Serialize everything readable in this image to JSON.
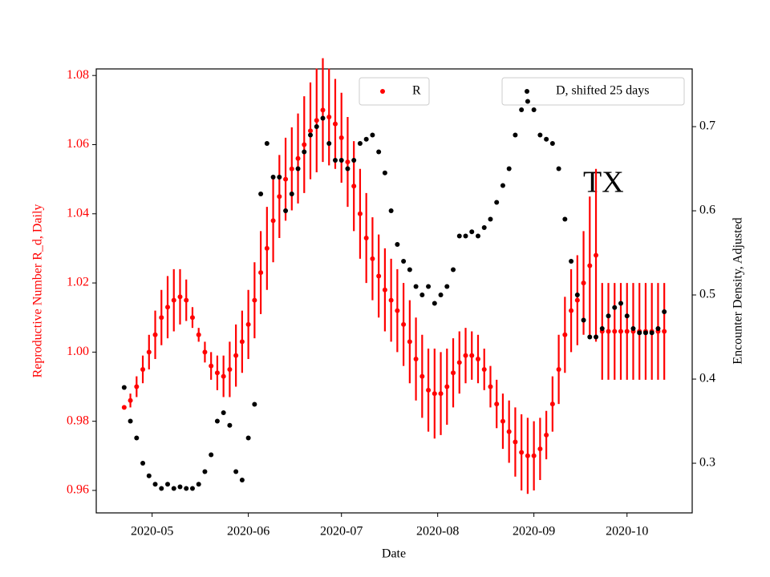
{
  "chart_data": {
    "type": "dual-scatter",
    "annotation": "TX",
    "x_label": "Date",
    "y_label": "Reproductive Number R_d, Daily",
    "y2_label": "Encounter Density, Adjusted",
    "xlim": [
      "2020-04-13",
      "2020-10-22"
    ],
    "xticks": [
      {
        "value": "2020-05-01",
        "label": "2020-05"
      },
      {
        "value": "2020-06-01",
        "label": "2020-06"
      },
      {
        "value": "2020-07-01",
        "label": "2020-07"
      },
      {
        "value": "2020-08-01",
        "label": "2020-08"
      },
      {
        "value": "2020-09-01",
        "label": "2020-09"
      },
      {
        "value": "2020-10-01",
        "label": "2020-10"
      }
    ],
    "ylim": [
      0.9535,
      1.0819
    ],
    "yticks": [
      0.96,
      0.98,
      {
        "value": 1,
        "label": "1.00"
      },
      1.02,
      1.04,
      1.06,
      1.08
    ],
    "y2lim": [
      0.241,
      0.7686
    ],
    "y2ticks": [
      0.3,
      0.4,
      0.5,
      0.6,
      0.7
    ],
    "x": [
      "2020-04-22",
      "2020-04-24",
      "2020-04-26",
      "2020-04-28",
      "2020-04-30",
      "2020-05-02",
      "2020-05-04",
      "2020-05-06",
      "2020-05-08",
      "2020-05-10",
      "2020-05-12",
      "2020-05-14",
      "2020-05-16",
      "2020-05-18",
      "2020-05-20",
      "2020-05-22",
      "2020-05-24",
      "2020-05-26",
      "2020-05-28",
      "2020-05-30",
      "2020-06-01",
      "2020-06-03",
      "2020-06-05",
      "2020-06-07",
      "2020-06-09",
      "2020-06-11",
      "2020-06-13",
      "2020-06-15",
      "2020-06-17",
      "2020-06-19",
      "2020-06-21",
      "2020-06-23",
      "2020-06-25",
      "2020-06-27",
      "2020-06-29",
      "2020-07-01",
      "2020-07-03",
      "2020-07-05",
      "2020-07-07",
      "2020-07-09",
      "2020-07-11",
      "2020-07-13",
      "2020-07-15",
      "2020-07-17",
      "2020-07-19",
      "2020-07-21",
      "2020-07-23",
      "2020-07-25",
      "2020-07-27",
      "2020-07-29",
      "2020-07-31",
      "2020-08-02",
      "2020-08-04",
      "2020-08-06",
      "2020-08-08",
      "2020-08-10",
      "2020-08-12",
      "2020-08-14",
      "2020-08-16",
      "2020-08-18",
      "2020-08-20",
      "2020-08-22",
      "2020-08-24",
      "2020-08-26",
      "2020-08-28",
      "2020-08-30",
      "2020-09-01",
      "2020-09-03",
      "2020-09-05",
      "2020-09-07",
      "2020-09-09",
      "2020-09-11",
      "2020-09-13",
      "2020-09-15",
      "2020-09-17",
      "2020-09-19",
      "2020-09-21",
      "2020-09-23",
      "2020-09-25",
      "2020-09-27",
      "2020-09-29",
      "2020-10-01",
      "2020-10-03",
      "2020-10-05",
      "2020-10-07",
      "2020-10-09",
      "2020-10-11",
      "2020-10-13"
    ],
    "series": [
      {
        "name": "R",
        "color": "#ff0000",
        "values": [
          0.984,
          0.986,
          0.99,
          0.995,
          1.0,
          1.005,
          1.01,
          1.013,
          1.015,
          1.016,
          1.015,
          1.01,
          1.005,
          1.0,
          0.996,
          0.994,
          0.993,
          0.995,
          0.999,
          1.003,
          1.008,
          1.015,
          1.023,
          1.03,
          1.038,
          1.045,
          1.05,
          1.053,
          1.056,
          1.06,
          1.064,
          1.067,
          1.07,
          1.068,
          1.066,
          1.062,
          1.055,
          1.048,
          1.04,
          1.033,
          1.027,
          1.022,
          1.018,
          1.015,
          1.012,
          1.008,
          1.003,
          0.998,
          0.993,
          0.989,
          0.988,
          0.988,
          0.99,
          0.994,
          0.997,
          0.999,
          0.999,
          0.998,
          0.995,
          0.99,
          0.985,
          0.98,
          0.977,
          0.974,
          0.971,
          0.97,
          0.97,
          0.972,
          0.976,
          0.985,
          0.995,
          1.005,
          1.012,
          1.015,
          1.02,
          1.025,
          1.028,
          1.006,
          1.006,
          1.006,
          1.006,
          1.006,
          1.006,
          1.006,
          1.006,
          1.006,
          1.006,
          1.006
        ],
        "errors": [
          0,
          0.002,
          0.003,
          0.004,
          0.005,
          0.007,
          0.008,
          0.009,
          0.009,
          0.008,
          0.006,
          0.003,
          0.002,
          0.003,
          0.004,
          0.005,
          0.006,
          0.008,
          0.009,
          0.009,
          0.01,
          0.011,
          0.012,
          0.012,
          0.012,
          0.012,
          0.012,
          0.012,
          0.013,
          0.014,
          0.014,
          0.015,
          0.015,
          0.014,
          0.013,
          0.013,
          0.013,
          0.013,
          0.013,
          0.013,
          0.012,
          0.012,
          0.012,
          0.012,
          0.012,
          0.012,
          0.012,
          0.012,
          0.012,
          0.012,
          0.013,
          0.012,
          0.011,
          0.01,
          0.009,
          0.008,
          0.007,
          0.007,
          0.006,
          0.006,
          0.007,
          0.008,
          0.009,
          0.01,
          0.011,
          0.011,
          0.01,
          0.009,
          0.007,
          0.008,
          0.01,
          0.011,
          0.012,
          0.013,
          0.015,
          0.02,
          0.025,
          0.014,
          0.014,
          0.014,
          0.014,
          0.014,
          0.014,
          0.014,
          0.014,
          0.014,
          0.014,
          0.014
        ]
      },
      {
        "name": "D, shifted 25 days",
        "color": "#000000",
        "axis": "y2",
        "values": [
          0.39,
          0.35,
          0.33,
          0.3,
          0.285,
          0.275,
          0.27,
          0.275,
          0.27,
          0.272,
          0.27,
          0.27,
          0.275,
          0.29,
          0.31,
          0.35,
          0.36,
          0.345,
          0.29,
          0.28,
          0.33,
          0.37,
          0.62,
          0.68,
          0.64,
          0.64,
          0.6,
          0.62,
          0.65,
          0.67,
          0.69,
          0.7,
          0.71,
          0.68,
          0.66,
          0.66,
          0.65,
          0.66,
          0.68,
          0.685,
          0.69,
          0.67,
          0.645,
          0.6,
          0.56,
          0.54,
          0.53,
          0.51,
          0.5,
          0.51,
          0.49,
          0.5,
          0.51,
          0.53,
          0.57,
          0.57,
          0.575,
          0.57,
          0.58,
          0.59,
          0.61,
          0.63,
          0.65,
          0.69,
          0.72,
          0.73,
          0.72,
          0.69,
          0.685,
          0.68,
          0.65,
          0.59,
          0.54,
          0.5,
          0.47,
          0.45,
          0.45,
          0.46,
          0.475,
          0.485,
          0.49,
          0.475,
          0.46,
          0.455,
          0.455,
          0.455,
          0.46,
          0.48
        ]
      }
    ]
  }
}
